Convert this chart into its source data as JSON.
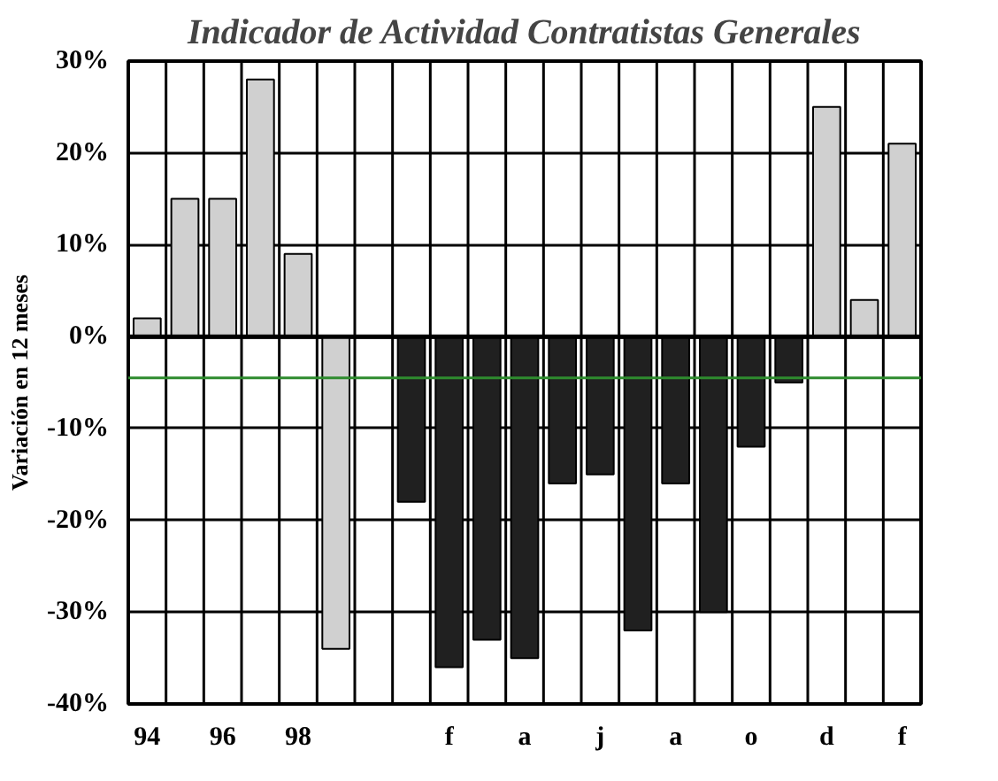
{
  "chart_data": {
    "type": "bar",
    "title": "Indicador de Actividad Contratistas Generales",
    "ylabel": "Variación en 12 meses",
    "categories": [
      "94",
      null,
      "96",
      null,
      "98",
      null,
      null,
      null,
      "f",
      null,
      "a",
      null,
      "j",
      null,
      "a",
      null,
      "o",
      null,
      "d",
      null,
      "f"
    ],
    "values": [
      2,
      15,
      15,
      28,
      9,
      -34,
      null,
      -18,
      -36,
      -33,
      -35,
      -16,
      -15,
      -32,
      -16,
      -30,
      -12,
      -5,
      25,
      4,
      21
    ],
    "colors": [
      "#d0d0d0",
      "#d0d0d0",
      "#d0d0d0",
      "#d0d0d0",
      "#d0d0d0",
      "#d0d0d0",
      "#d0d0d0",
      "#202020",
      "#202020",
      "#202020",
      "#202020",
      "#202020",
      "#202020",
      "#202020",
      "#202020",
      "#202020",
      "#202020",
      "#202020",
      "#d0d0d0",
      "#d0d0d0",
      "#d0d0d0"
    ],
    "ylim": [
      -40,
      30
    ],
    "yticks": [
      {
        "value": -40,
        "label": "-40%"
      },
      {
        "value": -30,
        "label": "-30%"
      },
      {
        "value": -20,
        "label": "-20%"
      },
      {
        "value": -10,
        "label": "-10%"
      },
      {
        "value": 0,
        "label": "0%"
      },
      {
        "value": 10,
        "label": "10%"
      },
      {
        "value": 20,
        "label": "20%"
      },
      {
        "value": 30,
        "label": "30%"
      }
    ],
    "ref_lines": [
      {
        "axis": "y",
        "value": -4.5,
        "label": null,
        "color": "#2e8b2e"
      }
    ],
    "grid": true
  }
}
